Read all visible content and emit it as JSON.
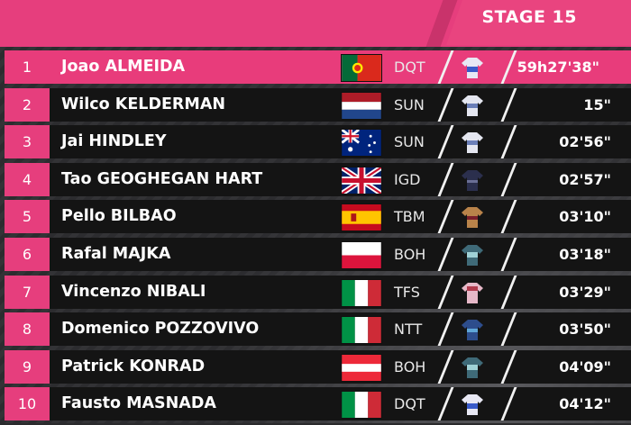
{
  "header": {
    "stage_title": "STAGE 15"
  },
  "colors": {
    "accent_pink": "#e63e7d",
    "row_dark": "#141414"
  },
  "standings": [
    {
      "position": "1",
      "rider": "Joao ALMEIDA",
      "flag": "portugal-flag",
      "team": "DQT",
      "jersey": "pink-jersey",
      "time": "59h27'38\""
    },
    {
      "position": "2",
      "rider": "Wilco KELDERMAN",
      "flag": "netherlands-flag",
      "team": "SUN",
      "jersey": "sunweb-jersey",
      "time": "15\""
    },
    {
      "position": "3",
      "rider": "Jai HINDLEY",
      "flag": "australia-flag",
      "team": "SUN",
      "jersey": "sunweb-jersey",
      "time": "02'56\""
    },
    {
      "position": "4",
      "rider": "Tao GEOGHEGAN HART",
      "flag": "uk-flag",
      "team": "IGD",
      "jersey": "ineos-jersey",
      "time": "02'57\""
    },
    {
      "position": "5",
      "rider": "Pello BILBAO",
      "flag": "spain-flag",
      "team": "TBM",
      "jersey": "bahrain-jersey",
      "time": "03'10\""
    },
    {
      "position": "6",
      "rider": "Rafal MAJKA",
      "flag": "poland-flag",
      "team": "BOH",
      "jersey": "bora-jersey",
      "time": "03'18\""
    },
    {
      "position": "7",
      "rider": "Vincenzo NIBALI",
      "flag": "italy-flag",
      "team": "TFS",
      "jersey": "trek-jersey",
      "time": "03'29\""
    },
    {
      "position": "8",
      "rider": "Domenico POZZOVIVO",
      "flag": "italy-flag",
      "team": "NTT",
      "jersey": "ntt-jersey",
      "time": "03'50\""
    },
    {
      "position": "9",
      "rider": "Patrick KONRAD",
      "flag": "austria-flag",
      "team": "BOH",
      "jersey": "bora-jersey",
      "time": "04'09\""
    },
    {
      "position": "10",
      "rider": "Fausto MASNADA",
      "flag": "italy-flag",
      "team": "DQT",
      "jersey": "deceuninck-jersey",
      "time": "04'12\""
    }
  ]
}
